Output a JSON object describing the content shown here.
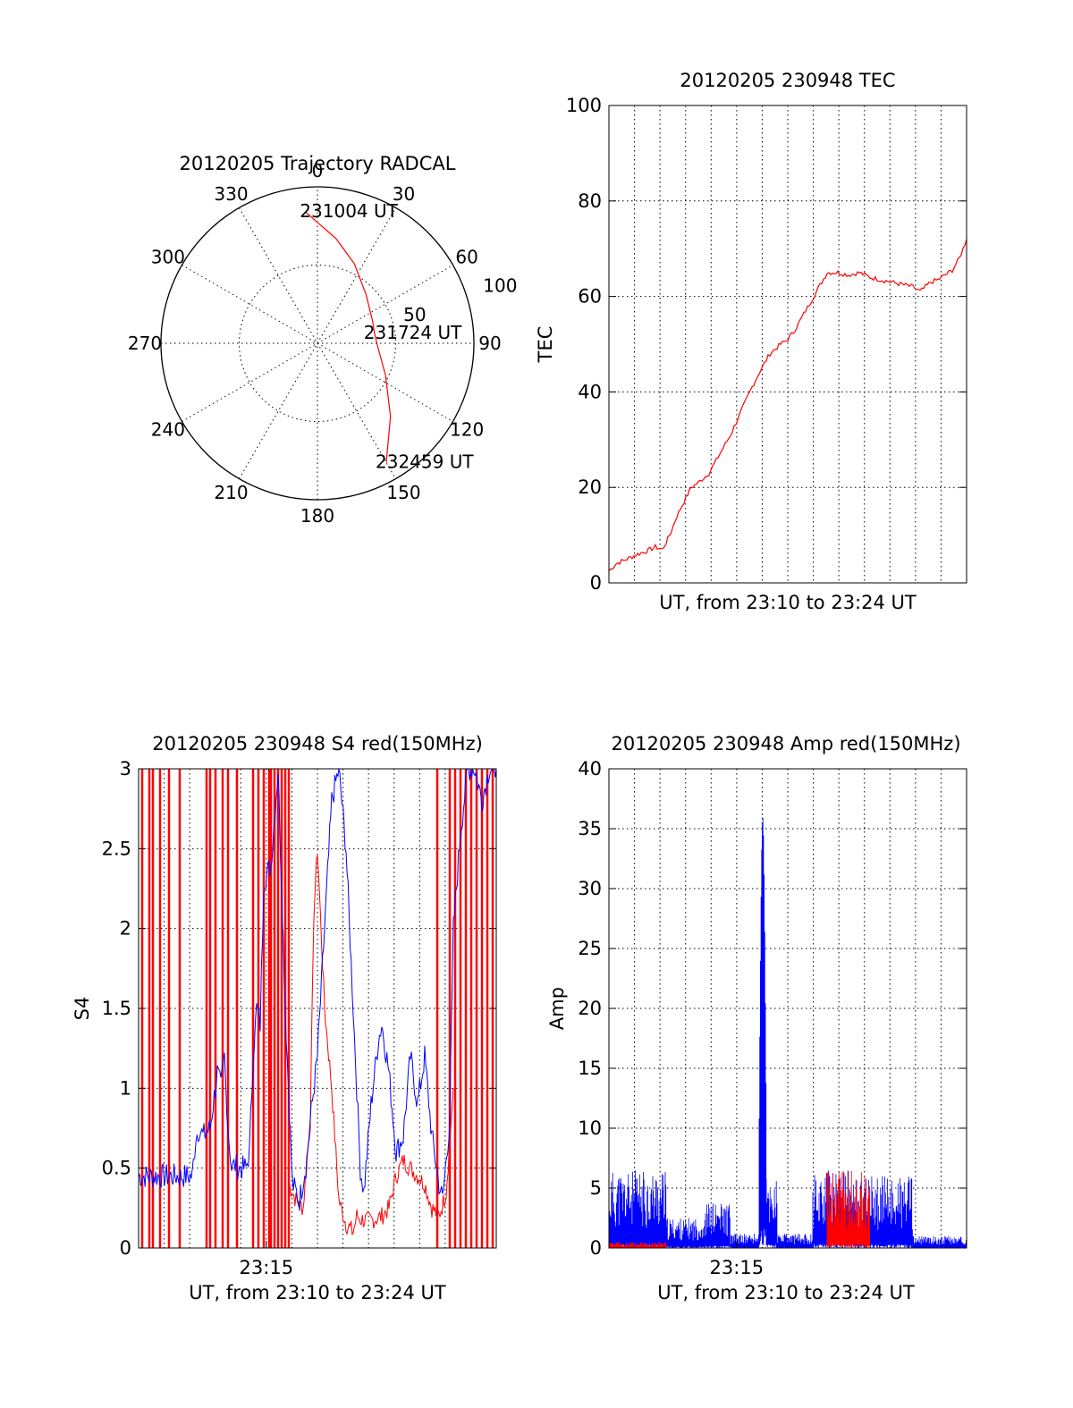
{
  "chart_data": [
    {
      "type": "polar",
      "title": "20120205 Trajectory RADCAL",
      "angle_labels": [
        "0",
        "30",
        "60",
        "90",
        "120",
        "150",
        "180",
        "210",
        "240",
        "270",
        "300",
        "330"
      ],
      "radius_labels": [
        "50",
        "100"
      ],
      "series": [
        {
          "color": "#ff0000",
          "points": [
            {
              "az": 355,
              "r": 84
            },
            {
              "az": 10,
              "r": 68
            },
            {
              "az": 25,
              "r": 56
            },
            {
              "az": 45,
              "r": 44
            },
            {
              "az": 68,
              "r": 38
            },
            {
              "az": 80,
              "r": 37
            },
            {
              "az": 95,
              "r": 39
            },
            {
              "az": 115,
              "r": 48
            },
            {
              "az": 135,
              "r": 66
            },
            {
              "az": 150,
              "r": 88
            }
          ]
        }
      ],
      "annotations": [
        {
          "text": "231004 UT",
          "az": 357,
          "r": 84
        },
        {
          "text": "231724 UT",
          "az": 80,
          "r": 37
        },
        {
          "text": "232459 UT",
          "az": 150,
          "r": 88
        }
      ]
    },
    {
      "type": "line",
      "title": "20120205 230948 TEC",
      "xlabel": "UT, from 23:10 to 23:24 UT",
      "ylabel": "TEC",
      "ylim": [
        0,
        100
      ],
      "yticks": [
        "0",
        "20",
        "40",
        "60",
        "80",
        "100"
      ],
      "xticks": [],
      "series": [
        {
          "color": "#ff0000",
          "x": [
            0,
            0.02,
            0.05,
            0.08,
            0.11,
            0.13,
            0.15,
            0.17,
            0.19,
            0.21,
            0.23,
            0.25,
            0.28,
            0.31,
            0.34,
            0.37,
            0.4,
            0.42,
            0.45,
            0.48,
            0.5,
            0.52,
            0.55,
            0.58,
            0.61,
            0.64,
            0.67,
            0.7,
            0.73,
            0.76,
            0.79,
            0.82,
            0.85,
            0.87,
            0.9,
            0.92,
            0.94,
            0.96,
            0.98,
            1.0
          ],
          "y": [
            2.5,
            4,
            5,
            6,
            6.8,
            7.5,
            7,
            10,
            14,
            17,
            20,
            21,
            23,
            27,
            31,
            36,
            41,
            44,
            48,
            50,
            51,
            53,
            57,
            61,
            65,
            65,
            64.5,
            65,
            64,
            63.5,
            63,
            62.5,
            62,
            61,
            63,
            63.5,
            64.5,
            65.5,
            68,
            72
          ]
        }
      ]
    },
    {
      "type": "line",
      "title": "20120205 230948 S4 red(150MHz)",
      "xlabel": "UT, from 23:10 to 23:24 UT",
      "ylabel": "S4",
      "ylim": [
        0,
        3
      ],
      "yticks": [
        "0",
        "0.5",
        "1",
        "1.5",
        "2",
        "2.5",
        "3"
      ],
      "xticks": [
        {
          "label": "23:15",
          "x": 0.357
        }
      ],
      "spikes_red": [
        0.01,
        0.03,
        0.04,
        0.06,
        0.085,
        0.115,
        0.19,
        0.2,
        0.215,
        0.235,
        0.25,
        0.275,
        0.32,
        0.335,
        0.35,
        0.365,
        0.37,
        0.38,
        0.39,
        0.4,
        0.41,
        0.42,
        0.835,
        0.87,
        0.885,
        0.9,
        0.915,
        0.93,
        0.945,
        0.96,
        0.975,
        0.99
      ],
      "series": [
        {
          "name": "",
          "color": "#ff0000",
          "x": [
            0.42,
            0.44,
            0.46,
            0.48,
            0.49,
            0.5,
            0.52,
            0.54,
            0.56,
            0.58,
            0.6,
            0.61,
            0.62,
            0.64,
            0.66,
            0.68,
            0.7,
            0.72,
            0.74,
            0.76,
            0.78,
            0.8,
            0.82,
            0.84,
            0.86,
            0.88
          ],
          "y": [
            0.4,
            0.3,
            0.25,
            0.8,
            2.1,
            2.5,
            1.5,
            1.0,
            0.3,
            0.15,
            0.1,
            0.2,
            0.18,
            0.17,
            0.18,
            0.2,
            0.25,
            0.45,
            0.55,
            0.5,
            0.45,
            0.4,
            0.25,
            0.2,
            0.35,
            1.0
          ]
        },
        {
          "name": "",
          "color": "#0000ff",
          "x": [
            0,
            0.03,
            0.06,
            0.09,
            0.12,
            0.15,
            0.16,
            0.17,
            0.18,
            0.2,
            0.22,
            0.23,
            0.24,
            0.25,
            0.26,
            0.27,
            0.28,
            0.3,
            0.31,
            0.32,
            0.33,
            0.34,
            0.35,
            0.37,
            0.39,
            0.41,
            0.43,
            0.45,
            0.47,
            0.48,
            0.5,
            0.52,
            0.54,
            0.56,
            0.58,
            0.6,
            0.61,
            0.62,
            0.63,
            0.65,
            0.67,
            0.68,
            0.7,
            0.72,
            0.74,
            0.76,
            0.78,
            0.8,
            0.82,
            0.84,
            0.85,
            0.87,
            0.88,
            0.9,
            0.92,
            0.94,
            0.96,
            0.98,
            1.0
          ],
          "y": [
            0.45,
            0.45,
            0.45,
            0.45,
            0.45,
            0.45,
            0.7,
            0.75,
            0.7,
            0.75,
            1.1,
            1.0,
            1.2,
            0.75,
            0.5,
            0.52,
            0.5,
            0.5,
            0.6,
            1.2,
            1.5,
            1.4,
            2.3,
            2.4,
            3.0,
            1.5,
            0.4,
            0.3,
            0.55,
            0.8,
            1.2,
            2.0,
            2.8,
            3.0,
            2.5,
            1.5,
            1.0,
            0.5,
            0.35,
            0.9,
            1.3,
            1.4,
            1.1,
            0.6,
            0.7,
            1.2,
            0.9,
            1.2,
            0.7,
            0.4,
            0.3,
            0.8,
            2.0,
            2.6,
            3.0,
            3.0,
            2.8,
            3.0,
            3.0
          ]
        }
      ]
    },
    {
      "type": "line",
      "title": "20120205 230948 Amp red(150MHz)",
      "xlabel": "UT, from 23:10 to 23:24 UT",
      "ylabel": "Amp",
      "ylim": [
        0,
        40
      ],
      "yticks": [
        "0",
        "5",
        "10",
        "15",
        "20",
        "25",
        "30",
        "35",
        "40"
      ],
      "xticks": [
        {
          "label": "23:15",
          "x": 0.357
        }
      ],
      "bands": [
        {
          "color": "#0000ff",
          "x0": 0,
          "x1": 0.16,
          "top": 6.5
        },
        {
          "color": "#0000ff",
          "x0": 0.16,
          "x1": 0.27,
          "top": 2.5
        },
        {
          "color": "#0000ff",
          "x0": 0.27,
          "x1": 0.34,
          "top": 3.8
        },
        {
          "color": "#0000ff",
          "x0": 0.34,
          "x1": 0.42,
          "top": 1.2
        },
        {
          "color": "#0000ff",
          "x0": 0.42,
          "x1": 0.44,
          "top": 36
        },
        {
          "color": "#0000ff",
          "x0": 0.44,
          "x1": 0.47,
          "top": 6
        },
        {
          "color": "#0000ff",
          "x0": 0.47,
          "x1": 0.57,
          "top": 1.2
        },
        {
          "color": "#0000ff",
          "x0": 0.57,
          "x1": 0.67,
          "top": 6.5
        },
        {
          "color": "#ff0000",
          "x0": 0.61,
          "x1": 0.73,
          "top": 6.5
        },
        {
          "color": "#0000ff",
          "x0": 0.67,
          "x1": 0.85,
          "top": 6
        },
        {
          "color": "#0000ff",
          "x0": 0.85,
          "x1": 1.0,
          "top": 1.0
        },
        {
          "color": "#ff0000",
          "x0": 0,
          "x1": 0.16,
          "top": 0.5
        }
      ]
    }
  ]
}
